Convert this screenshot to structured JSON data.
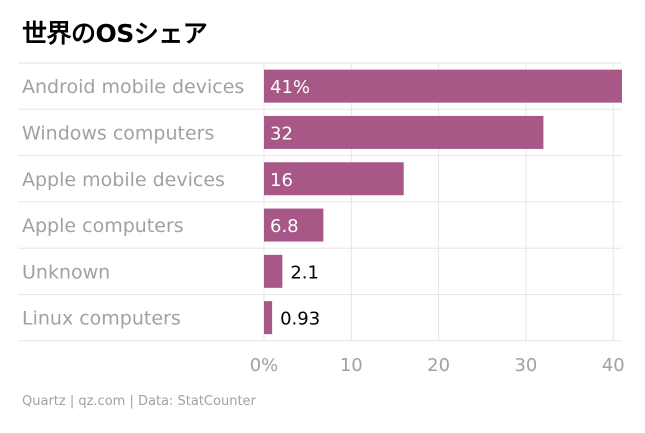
{
  "header": {
    "title": "世界のOSシェア"
  },
  "footer": {
    "source": "Quartz | qz.com | Data: StatCounter"
  },
  "colors": {
    "bar": "#a85886",
    "label": "#a1a1a1",
    "grid": "#e6e6e6"
  },
  "chart_data": {
    "type": "bar",
    "orientation": "horizontal",
    "categories": [
      "Android mobile devices",
      "Windows computers",
      "Apple mobile devices",
      "Apple computers",
      "Unknown",
      "Linux computers"
    ],
    "values": [
      41,
      32,
      16,
      6.8,
      2.1,
      0.93
    ],
    "value_labels": [
      "41%",
      "32",
      "16",
      "6.8",
      "2.1",
      "0.93"
    ],
    "xlim": [
      0,
      41
    ],
    "xticks": [
      0,
      10,
      20,
      30,
      40
    ],
    "xtick_labels": [
      "0%",
      "10",
      "20",
      "30",
      "40"
    ],
    "grid": true
  }
}
